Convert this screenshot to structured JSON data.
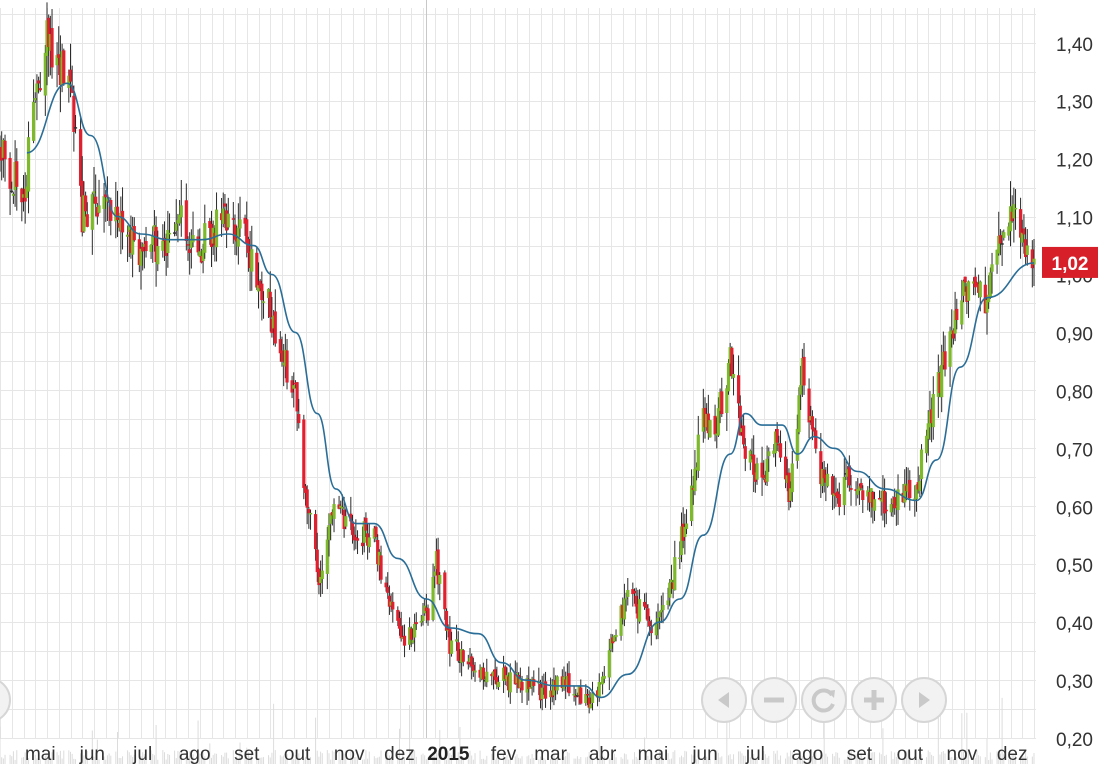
{
  "chart_data": {
    "type": "candlestick",
    "title": "",
    "xlabel": "",
    "ylabel": "",
    "ylim": [
      0.2,
      1.46
    ],
    "grid": true,
    "y_ticks": [
      "1,40",
      "1,30",
      "1,20",
      "1,10",
      "1,00",
      "0,90",
      "0,80",
      "0,70",
      "0,60",
      "0,50",
      "0,40",
      "0,30",
      "0,20"
    ],
    "y_tick_values": [
      1.4,
      1.3,
      1.2,
      1.1,
      1.0,
      0.9,
      0.8,
      0.7,
      0.6,
      0.5,
      0.4,
      0.3,
      0.2
    ],
    "x_ticks": [
      "mai",
      "jun",
      "jul",
      "ago",
      "set",
      "out",
      "nov",
      "dez",
      "2015",
      "fev",
      "mar",
      "abr",
      "mai",
      "jun",
      "jul",
      "ago",
      "set",
      "out",
      "nov",
      "dez"
    ],
    "x_tick_months": [
      "2014-05",
      "2014-06",
      "2014-07",
      "2014-08",
      "2014-09",
      "2014-10",
      "2014-11",
      "2014-12",
      "2015-01",
      "2015-02",
      "2015-03",
      "2015-04",
      "2015-05",
      "2015-06",
      "2015-07",
      "2015-08",
      "2015-09",
      "2015-10",
      "2015-11",
      "2015-12"
    ],
    "x_range": [
      "2014-04-22",
      "2015-12-29"
    ],
    "price_anchors": [
      [
        "2014-04-22",
        1.22
      ],
      [
        "2014-05-06",
        1.13
      ],
      [
        "2014-05-13",
        1.3
      ],
      [
        "2014-05-20",
        1.4
      ],
      [
        "2014-06-03",
        1.33
      ],
      [
        "2014-06-10",
        1.1
      ],
      [
        "2014-06-20",
        1.13
      ],
      [
        "2014-07-01",
        1.08
      ],
      [
        "2014-07-15",
        1.04
      ],
      [
        "2014-07-29",
        1.06
      ],
      [
        "2014-08-08",
        1.11
      ],
      [
        "2014-08-15",
        1.04
      ],
      [
        "2014-09-01",
        1.09
      ],
      [
        "2014-09-15",
        1.07
      ],
      [
        "2014-09-29",
        0.95
      ],
      [
        "2014-10-08",
        0.86
      ],
      [
        "2014-10-15",
        0.8
      ],
      [
        "2014-10-22",
        0.6
      ],
      [
        "2014-10-29",
        0.48
      ],
      [
        "2014-11-07",
        0.6
      ],
      [
        "2014-11-20",
        0.56
      ],
      [
        "2014-12-01",
        0.54
      ],
      [
        "2014-12-10",
        0.44
      ],
      [
        "2014-12-20",
        0.37
      ],
      [
        "2015-01-02",
        0.42
      ],
      [
        "2015-01-07",
        0.5
      ],
      [
        "2015-01-15",
        0.36
      ],
      [
        "2015-02-01",
        0.32
      ],
      [
        "2015-02-20",
        0.3
      ],
      [
        "2015-03-10",
        0.28
      ],
      [
        "2015-03-25",
        0.3
      ],
      [
        "2015-04-05",
        0.26
      ],
      [
        "2015-04-13",
        0.27
      ],
      [
        "2015-04-20",
        0.36
      ],
      [
        "2015-05-01",
        0.44
      ],
      [
        "2015-05-15",
        0.4
      ],
      [
        "2015-05-25",
        0.44
      ],
      [
        "2015-06-05",
        0.58
      ],
      [
        "2015-06-15",
        0.75
      ],
      [
        "2015-06-22",
        0.73
      ],
      [
        "2015-07-01",
        0.85
      ],
      [
        "2015-07-10",
        0.7
      ],
      [
        "2015-07-20",
        0.63
      ],
      [
        "2015-07-28",
        0.71
      ],
      [
        "2015-08-06",
        0.62
      ],
      [
        "2015-08-13",
        0.83
      ],
      [
        "2015-08-22",
        0.68
      ],
      [
        "2015-09-01",
        0.6
      ],
      [
        "2015-09-10",
        0.65
      ],
      [
        "2015-09-25",
        0.6
      ],
      [
        "2015-10-10",
        0.61
      ],
      [
        "2015-10-20",
        0.63
      ],
      [
        "2015-11-01",
        0.8
      ],
      [
        "2015-11-10",
        0.9
      ],
      [
        "2015-11-20",
        0.99
      ],
      [
        "2015-12-01",
        0.96
      ],
      [
        "2015-12-10",
        1.06
      ],
      [
        "2015-12-18",
        1.11
      ],
      [
        "2015-12-29",
        1.02
      ]
    ],
    "moving_average_anchors": [
      [
        "2014-05-08",
        1.21
      ],
      [
        "2014-06-01",
        1.33
      ],
      [
        "2014-06-15",
        1.24
      ],
      [
        "2014-07-01",
        1.1
      ],
      [
        "2014-07-15",
        1.07
      ],
      [
        "2014-08-01",
        1.06
      ],
      [
        "2014-08-20",
        1.06
      ],
      [
        "2014-09-05",
        1.07
      ],
      [
        "2014-09-20",
        1.05
      ],
      [
        "2014-10-01",
        1.0
      ],
      [
        "2014-10-15",
        0.9
      ],
      [
        "2014-10-28",
        0.76
      ],
      [
        "2014-11-08",
        0.63
      ],
      [
        "2014-11-20",
        0.57
      ],
      [
        "2014-12-01",
        0.57
      ],
      [
        "2014-12-15",
        0.51
      ],
      [
        "2015-01-01",
        0.44
      ],
      [
        "2015-01-15",
        0.39
      ],
      [
        "2015-02-01",
        0.38
      ],
      [
        "2015-02-15",
        0.33
      ],
      [
        "2015-03-01",
        0.3
      ],
      [
        "2015-03-20",
        0.29
      ],
      [
        "2015-04-05",
        0.29
      ],
      [
        "2015-04-15",
        0.27
      ],
      [
        "2015-05-01",
        0.31
      ],
      [
        "2015-05-20",
        0.4
      ],
      [
        "2015-06-01",
        0.44
      ],
      [
        "2015-06-15",
        0.55
      ],
      [
        "2015-07-01",
        0.69
      ],
      [
        "2015-07-10",
        0.76
      ],
      [
        "2015-07-20",
        0.74
      ],
      [
        "2015-08-01",
        0.74
      ],
      [
        "2015-08-10",
        0.69
      ],
      [
        "2015-08-20",
        0.72
      ],
      [
        "2015-09-01",
        0.7
      ],
      [
        "2015-09-15",
        0.66
      ],
      [
        "2015-10-01",
        0.63
      ],
      [
        "2015-10-20",
        0.61
      ],
      [
        "2015-11-01",
        0.68
      ],
      [
        "2015-11-15",
        0.84
      ],
      [
        "2015-12-01",
        0.96
      ],
      [
        "2015-12-29",
        1.02
      ]
    ],
    "last_price_label": "1,02",
    "last_price": 1.02,
    "colors": {
      "up": "#7db92a",
      "down": "#e0202f",
      "flat": "#333333",
      "moving_average": "#2a6e98",
      "grid": "#e6e6e6",
      "last_price_badge": "#d71f2a"
    }
  },
  "navigator_buttons": [
    {
      "name": "scroll-left-button",
      "icon": "triangle-left-icon"
    },
    {
      "name": "zoom-out-button",
      "icon": "minus-icon"
    },
    {
      "name": "reset-zoom-button",
      "icon": "refresh-icon"
    },
    {
      "name": "zoom-in-button",
      "icon": "plus-icon"
    },
    {
      "name": "scroll-right-button",
      "icon": "triangle-right-icon"
    }
  ]
}
